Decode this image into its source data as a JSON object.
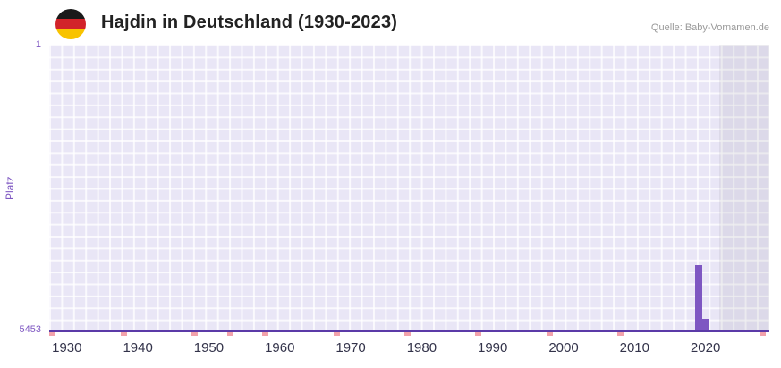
{
  "header": {
    "title": "Hajdin in Deutschland (1930-2023)",
    "source": "Quelle: Baby-Vornamen.de",
    "flag_icon": "german-flag-icon"
  },
  "chart_data": {
    "type": "bar",
    "title": "Hajdin in Deutschland (1930-2023)",
    "xlabel": "",
    "ylabel": "Platz",
    "y_axis": {
      "min": 1,
      "max": 5453,
      "inverted": true,
      "top_label": "1",
      "bottom_label": "5453"
    },
    "x_ticks": [
      "1930",
      "1940",
      "1950",
      "1960",
      "1970",
      "1980",
      "1990",
      "2000",
      "2010",
      "2020"
    ],
    "x_range": [
      1927.5,
      2029
    ],
    "bars": [
      {
        "year": 2019,
        "rank": 4200
      },
      {
        "year": 2020,
        "rank": 5220
      }
    ],
    "no_rank_marker_years": [
      1928,
      1938,
      1948,
      1953,
      1958,
      1968,
      1978,
      1988,
      1998,
      2008,
      2028
    ],
    "highlight_band": {
      "start_year": 2022,
      "end_year": 2029
    },
    "grid": true,
    "legend": false,
    "colors": {
      "bar": "#7e57c2",
      "marker": "#f2a2ab",
      "plot_background": "#e9e6f6",
      "grid_line": "#ffffffc0",
      "axis_line": "#5b3aa8",
      "y_label": "#7e57c2",
      "x_label": "#33334a",
      "title": "#222222",
      "source": "#999999"
    }
  }
}
